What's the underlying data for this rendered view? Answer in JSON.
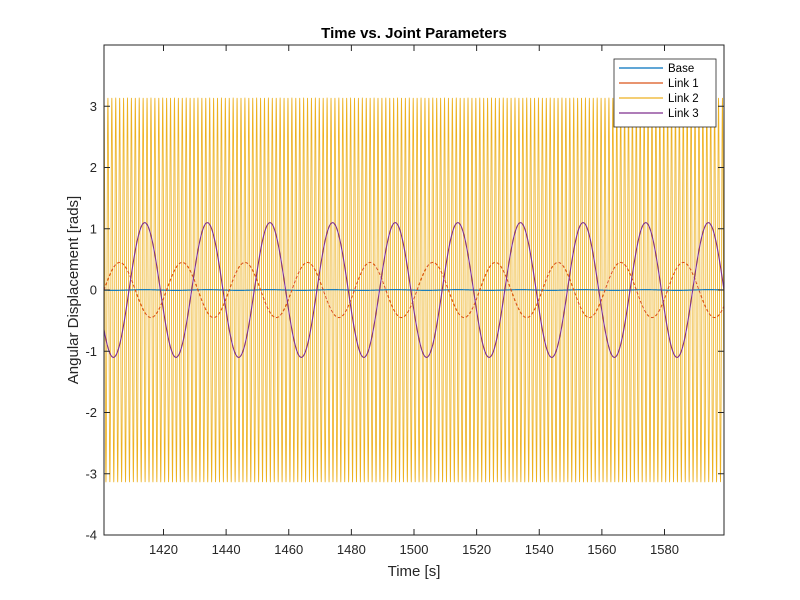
{
  "chart_data": {
    "type": "line",
    "title": "Time vs. Joint Parameters",
    "xlabel": "Time [s]",
    "ylabel": "Angular Displacement [rads]",
    "xlim": [
      1401,
      1599
    ],
    "ylim": [
      -4,
      4
    ],
    "xticks": [
      1420,
      1440,
      1460,
      1480,
      1500,
      1520,
      1540,
      1560,
      1580
    ],
    "yticks": [
      -4,
      -3,
      -2,
      -1,
      0,
      1,
      2,
      3
    ],
    "x_tick_labels": [
      "1420",
      "1440",
      "1460",
      "1480",
      "1500",
      "1520",
      "1540",
      "1560",
      "1580"
    ],
    "y_tick_labels": [
      "-4",
      "-3",
      "-2",
      "-1",
      "0",
      "1",
      "2",
      "3"
    ],
    "grid": false,
    "legend_position": "top-right",
    "legend": [
      "Base",
      "Link 1",
      "Link 2",
      "Link 3"
    ],
    "series": [
      {
        "name": "Base",
        "color": "#0072BD",
        "dashed": false,
        "shape": "sinusoid",
        "amplitude": 0.005,
        "period": 20,
        "offset": 0,
        "phase_peak_at": 1414
      },
      {
        "name": "Link 1",
        "color": "#D95319",
        "dashed": true,
        "shape": "sinusoid",
        "amplitude": 0.45,
        "period": 20,
        "offset": 0,
        "phase_peak_at": 1406
      },
      {
        "name": "Link 2",
        "color": "#EDB120",
        "dashed": false,
        "shape": "sinusoid",
        "amplitude": 3.14,
        "period": 1.25,
        "offset": 0,
        "phase_peak_at": 1401
      },
      {
        "name": "Link 3",
        "color": "#7E2F8E",
        "dashed": false,
        "shape": "sinusoid",
        "amplitude": 1.1,
        "period": 20,
        "offset": 0,
        "phase_peak_at": 1414
      }
    ]
  }
}
